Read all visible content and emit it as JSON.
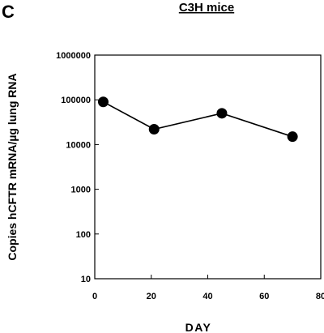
{
  "panel_letter": "C",
  "chart_data": {
    "type": "line",
    "title": "C3H   mice",
    "xlabel": "DAY",
    "ylabel": "Copies  hCFTR  mRNA/µg  lung  RNA",
    "y_scale": "log",
    "xlim": [
      0,
      80
    ],
    "ylim": [
      10,
      1000000
    ],
    "x_ticks": [
      0,
      20,
      40,
      60,
      80
    ],
    "x_tick_labels": [
      "0",
      "20",
      "40",
      "60",
      "80"
    ],
    "y_ticks": [
      10,
      100,
      1000,
      10000,
      100000,
      1000000
    ],
    "y_tick_labels": [
      "10",
      "100",
      "1000",
      "10000",
      "100000",
      "1000000"
    ],
    "grid": false,
    "legend": "none",
    "series": [
      {
        "x": [
          3,
          21,
          45,
          70
        ],
        "y": [
          90000,
          22000,
          50000,
          15000
        ],
        "marker": "filled-circle",
        "color": "#000000"
      }
    ]
  }
}
